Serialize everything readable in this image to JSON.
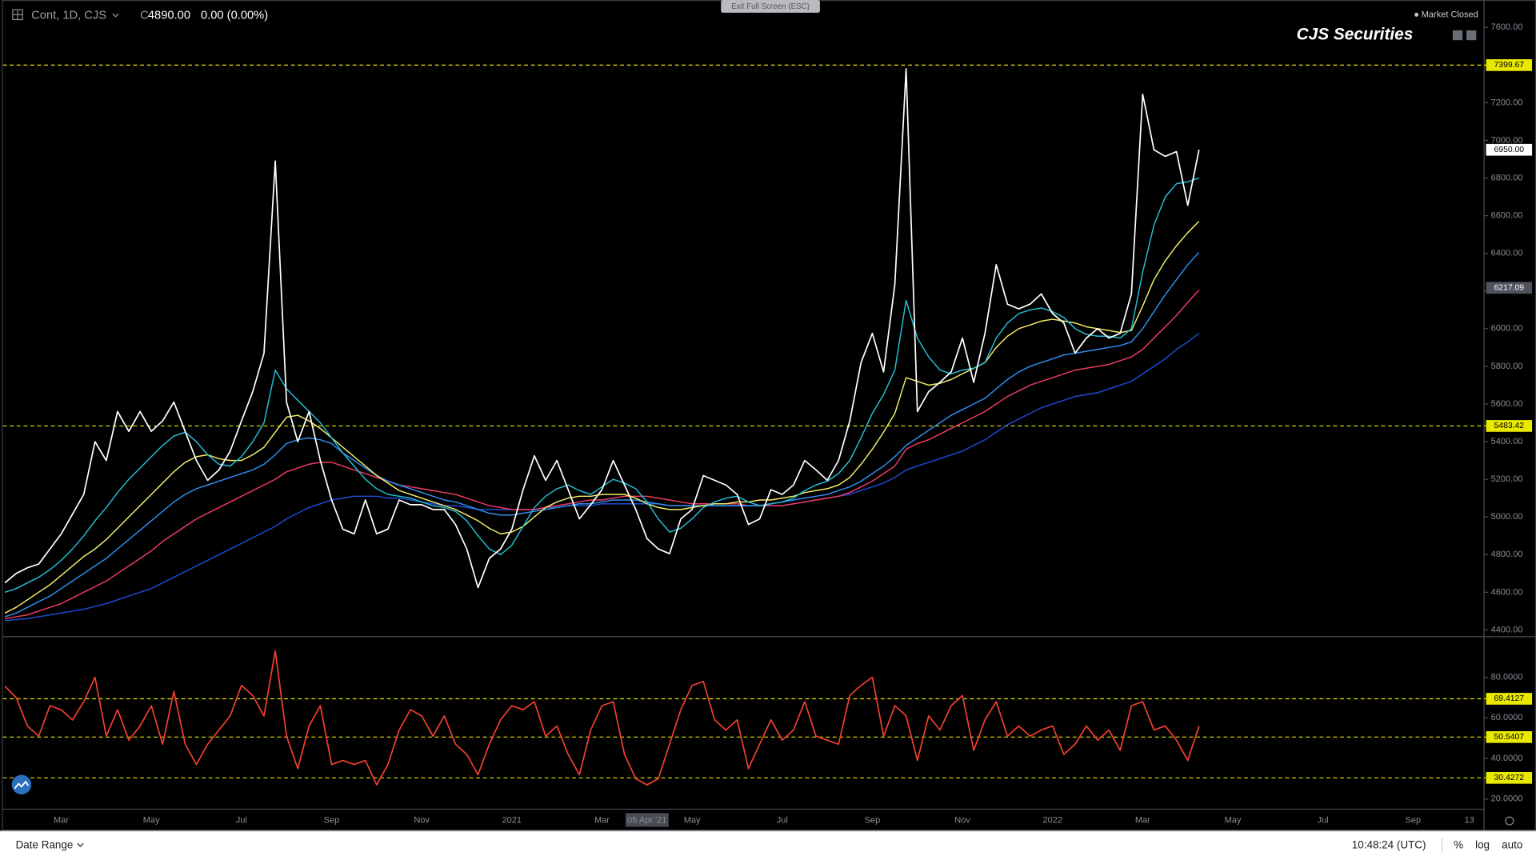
{
  "header": {
    "symbol": "Cont, 1D, CJS",
    "close_label": "C",
    "close": "4890.00",
    "change": "0.00 (0.00%)",
    "exit_button": "Exit Full Screen (ESC)",
    "market_status": "Market Closed",
    "brand": "CJS Securities"
  },
  "footer": {
    "date_range": "Date Range",
    "time": "10:48:24 (UTC)",
    "percent": "%",
    "log": "log",
    "auto": "auto"
  },
  "chart_data": {
    "type": "line",
    "categories": [
      null,
      null,
      null,
      null,
      null,
      "Mar",
      null,
      null,
      null,
      null,
      null,
      null,
      null,
      "May",
      null,
      null,
      null,
      null,
      null,
      null,
      null,
      "Jul",
      null,
      null,
      null,
      null,
      null,
      null,
      null,
      "Sep",
      null,
      null,
      null,
      null,
      null,
      null,
      null,
      "Nov",
      null,
      null,
      null,
      null,
      null,
      null,
      null,
      "2021",
      null,
      null,
      null,
      null,
      null,
      null,
      null,
      "Mar",
      null,
      null,
      null,
      "05 Apr '21",
      null,
      null,
      null,
      "May",
      null,
      null,
      null,
      null,
      null,
      null,
      null,
      "Jul",
      null,
      null,
      null,
      null,
      null,
      null,
      null,
      "Sep",
      null,
      null,
      null,
      null,
      null,
      null,
      null,
      "Nov",
      null,
      null,
      null,
      null,
      null,
      null,
      null,
      "2022",
      null,
      null,
      null,
      null,
      null,
      null,
      null,
      "Mar",
      null,
      null,
      null,
      null,
      null,
      null,
      null,
      "May",
      null,
      null,
      null,
      null,
      null,
      null,
      null,
      "Jul",
      null,
      null,
      null,
      null,
      null,
      null,
      null,
      "Sep",
      null,
      null,
      null,
      null,
      "13",
      null
    ],
    "ylim": [
      4364,
      7735
    ],
    "yticks": [
      {
        "value": 4400,
        "label": "4400.00"
      },
      {
        "value": 4600,
        "label": "4600.00"
      },
      {
        "value": 4800,
        "label": "4800.00"
      },
      {
        "value": 5000,
        "label": "5000.00"
      },
      {
        "value": 5200,
        "label": "5200.00"
      },
      {
        "value": 5400,
        "label": "5400.00"
      },
      {
        "value": 5600,
        "label": "5600.00"
      },
      {
        "value": 5800,
        "label": "5800.00"
      },
      {
        "value": 6000,
        "label": "6000.00"
      },
      {
        "value": 6200,
        "label": "6200.00"
      },
      {
        "value": 6400,
        "label": "6400.00"
      },
      {
        "value": 6600,
        "label": "6600.00"
      },
      {
        "value": 6800,
        "label": "6800.00"
      },
      {
        "value": 7000,
        "label": "7000.00"
      },
      {
        "value": 7200,
        "label": "7200.00"
      },
      {
        "value": 7400,
        "label": "7400.00"
      },
      {
        "value": 7600,
        "label": "7600.00"
      }
    ],
    "grid": false,
    "hlines": [
      7399.67,
      5483.42
    ],
    "hline_color": "#e8e800",
    "price_tags": [
      {
        "value": 6950,
        "label": "6950.00",
        "color": "#ffffff"
      },
      {
        "value": 6217.09,
        "color": "#50535e"
      }
    ],
    "series": [
      {
        "color": "#1e4bd2",
        "values": [
          4450,
          4455,
          4460,
          4470,
          4480,
          4490,
          4500,
          4510,
          4525,
          4540,
          4560,
          4580,
          4600,
          4620,
          4650,
          4680,
          4710,
          4740,
          4770,
          4800,
          4830,
          4860,
          4890,
          4920,
          4950,
          4990,
          5020,
          5050,
          5070,
          5090,
          5100,
          5110,
          5110,
          5110,
          5100,
          5100,
          5090,
          5080,
          5070,
          5060,
          5060,
          5050,
          5040,
          5040,
          5040,
          5040,
          5040,
          5040,
          5050,
          5050,
          5060,
          5060,
          5060,
          5070,
          5070,
          5070,
          5070,
          5070,
          5070,
          5060,
          5060,
          5060,
          5060,
          5060,
          5060,
          5060,
          5060,
          5060,
          5060,
          5060,
          5070,
          5080,
          5090,
          5100,
          5110,
          5120,
          5140,
          5160,
          5180,
          5210,
          5250,
          5270,
          5290,
          5310,
          5330,
          5350,
          5380,
          5410,
          5450,
          5490,
          5520,
          5550,
          5580,
          5600,
          5620,
          5640,
          5650,
          5660,
          5680,
          5700,
          5720,
          5760,
          5800,
          5840,
          5890,
          5930,
          5975,
          null,
          null,
          null,
          null,
          null,
          null,
          null,
          null,
          null,
          null,
          null,
          null,
          null,
          null,
          null,
          null,
          null,
          null,
          null,
          null,
          null,
          null,
          null,
          null,
          null
        ]
      },
      {
        "color": "#ef3b62",
        "values": [
          4460,
          4470,
          4480,
          4500,
          4520,
          4540,
          4570,
          4600,
          4630,
          4660,
          4700,
          4740,
          4780,
          4820,
          4870,
          4910,
          4950,
          4990,
          5020,
          5050,
          5080,
          5110,
          5140,
          5170,
          5200,
          5240,
          5260,
          5280,
          5290,
          5290,
          5270,
          5250,
          5230,
          5210,
          5190,
          5170,
          5160,
          5150,
          5140,
          5130,
          5120,
          5100,
          5080,
          5060,
          5050,
          5040,
          5040,
          5040,
          5050,
          5060,
          5070,
          5080,
          5090,
          5090,
          5100,
          5110,
          5110,
          5110,
          5100,
          5090,
          5080,
          5070,
          5070,
          5070,
          5070,
          5070,
          5060,
          5060,
          5060,
          5060,
          5070,
          5080,
          5090,
          5100,
          5110,
          5130,
          5160,
          5190,
          5230,
          5270,
          5360,
          5390,
          5410,
          5440,
          5470,
          5500,
          5530,
          5560,
          5600,
          5640,
          5670,
          5700,
          5720,
          5740,
          5760,
          5780,
          5790,
          5800,
          5810,
          5830,
          5850,
          5890,
          5950,
          6010,
          6070,
          6140,
          6205,
          null,
          null,
          null,
          null,
          null,
          null,
          null,
          null,
          null,
          null,
          null,
          null,
          null,
          null,
          null,
          null,
          null,
          null,
          null,
          null,
          null,
          null,
          null,
          null,
          null
        ]
      },
      {
        "color": "#2e8ff0",
        "values": [
          4470,
          4490,
          4520,
          4550,
          4580,
          4620,
          4660,
          4700,
          4740,
          4780,
          4830,
          4880,
          4930,
          4980,
          5030,
          5080,
          5120,
          5150,
          5170,
          5190,
          5210,
          5230,
          5250,
          5280,
          5330,
          5390,
          5410,
          5420,
          5410,
          5390,
          5340,
          5300,
          5260,
          5220,
          5190,
          5170,
          5150,
          5130,
          5110,
          5090,
          5080,
          5060,
          5040,
          5020,
          5010,
          5010,
          5020,
          5030,
          5040,
          5050,
          5060,
          5070,
          5070,
          5080,
          5090,
          5090,
          5090,
          5080,
          5070,
          5060,
          5060,
          5060,
          5060,
          5060,
          5060,
          5060,
          5060,
          5060,
          5070,
          5080,
          5090,
          5100,
          5110,
          5120,
          5140,
          5160,
          5190,
          5230,
          5270,
          5320,
          5380,
          5420,
          5460,
          5500,
          5540,
          5570,
          5600,
          5630,
          5680,
          5730,
          5770,
          5800,
          5820,
          5840,
          5860,
          5870,
          5880,
          5890,
          5900,
          5910,
          5930,
          6000,
          6090,
          6180,
          6260,
          6340,
          6405,
          null,
          null,
          null,
          null,
          null,
          null,
          null,
          null,
          null,
          null,
          null,
          null,
          null,
          null,
          null,
          null,
          null,
          null,
          null,
          null,
          null,
          null,
          null,
          null,
          null
        ]
      },
      {
        "color": "#f5ee6a",
        "values": [
          4490,
          4520,
          4560,
          4600,
          4640,
          4690,
          4740,
          4790,
          4830,
          4880,
          4940,
          5000,
          5060,
          5120,
          5180,
          5240,
          5290,
          5320,
          5330,
          5310,
          5300,
          5300,
          5330,
          5370,
          5450,
          5530,
          5540,
          5510,
          5470,
          5420,
          5370,
          5320,
          5270,
          5220,
          5180,
          5140,
          5120,
          5100,
          5080,
          5060,
          5040,
          5010,
          4980,
          4940,
          4910,
          4920,
          4950,
          5000,
          5050,
          5080,
          5100,
          5110,
          5110,
          5120,
          5120,
          5120,
          5100,
          5070,
          5050,
          5040,
          5040,
          5050,
          5060,
          5070,
          5070,
          5080,
          5080,
          5090,
          5090,
          5100,
          5110,
          5130,
          5140,
          5150,
          5170,
          5210,
          5280,
          5360,
          5450,
          5550,
          5740,
          5720,
          5700,
          5710,
          5730,
          5760,
          5790,
          5820,
          5900,
          5960,
          6000,
          6020,
          6040,
          6050,
          6040,
          6030,
          6010,
          6000,
          5990,
          5980,
          5990,
          6120,
          6260,
          6360,
          6440,
          6510,
          6570,
          null,
          null,
          null,
          null,
          null,
          null,
          null,
          null,
          null,
          null,
          null,
          null,
          null,
          null,
          null,
          null,
          null,
          null,
          null,
          null,
          null,
          null,
          null,
          null,
          null
        ]
      },
      {
        "color": "#22bfd6",
        "values": [
          4600,
          4620,
          4650,
          4680,
          4720,
          4770,
          4830,
          4900,
          4980,
          5050,
          5130,
          5200,
          5260,
          5320,
          5380,
          5430,
          5450,
          5400,
          5330,
          5280,
          5270,
          5320,
          5400,
          5500,
          5780,
          5680,
          5620,
          5560,
          5500,
          5420,
          5340,
          5270,
          5200,
          5150,
          5120,
          5110,
          5100,
          5080,
          5060,
          5050,
          5030,
          4980,
          4900,
          4830,
          4800,
          4850,
          4950,
          5050,
          5110,
          5150,
          5170,
          5140,
          5120,
          5160,
          5200,
          5180,
          5150,
          5080,
          4990,
          4920,
          4940,
          4990,
          5050,
          5080,
          5100,
          5110,
          5080,
          5060,
          5070,
          5080,
          5100,
          5140,
          5170,
          5190,
          5230,
          5300,
          5420,
          5550,
          5650,
          5780,
          6150,
          5950,
          5850,
          5780,
          5760,
          5780,
          5790,
          5820,
          5950,
          6030,
          6080,
          6100,
          6110,
          6090,
          6060,
          6000,
          5970,
          5960,
          5960,
          5950,
          6000,
          6300,
          6550,
          6700,
          6770,
          6780,
          6800,
          null,
          null,
          null,
          null,
          null,
          null,
          null,
          null,
          null,
          null,
          null,
          null,
          null,
          null,
          null,
          null,
          null,
          null,
          null,
          null,
          null,
          null,
          null,
          null,
          null
        ]
      },
      {
        "color": "#ffffff",
        "values": [
          4650,
          4700,
          4730,
          4750,
          4830,
          4910,
          5015,
          5120,
          5400,
          5300,
          5560,
          5455,
          5560,
          5455,
          5510,
          5610,
          5455,
          5300,
          5195,
          5250,
          5350,
          5510,
          5665,
          5870,
          6890,
          5610,
          5400,
          5560,
          5300,
          5090,
          4935,
          4910,
          5090,
          4910,
          4935,
          5090,
          5065,
          5065,
          5040,
          5040,
          4960,
          4830,
          4625,
          4780,
          4830,
          4935,
          5145,
          5325,
          5195,
          5300,
          5145,
          4990,
          5065,
          5145,
          5300,
          5170,
          5040,
          4885,
          4830,
          4805,
          4990,
          5040,
          5220,
          5195,
          5170,
          5120,
          4960,
          4990,
          5145,
          5120,
          5170,
          5300,
          5250,
          5195,
          5300,
          5510,
          5820,
          5975,
          5770,
          6235,
          7380,
          5560,
          5665,
          5715,
          5770,
          5950,
          5715,
          5975,
          6340,
          6130,
          6105,
          6130,
          6185,
          6080,
          6030,
          5870,
          5950,
          6000,
          5950,
          5975,
          6185,
          7245,
          6950,
          6915,
          6940,
          6655,
          6950,
          null,
          null,
          null,
          null,
          null,
          null,
          null,
          null,
          null,
          null,
          null,
          null,
          null,
          null,
          null,
          null,
          null,
          null,
          null,
          null,
          null,
          null,
          null,
          null,
          null
        ]
      }
    ],
    "rsi_pane": {
      "type": "line",
      "ylim": [
        15,
        100
      ],
      "yticks": [
        {
          "value": 20,
          "label": "20.0000"
        },
        {
          "value": 40,
          "label": "40.0000"
        },
        {
          "value": 60,
          "label": "60.0000"
        },
        {
          "value": 80,
          "label": "80.0000"
        }
      ],
      "levels": [
        69.4127,
        50.5407,
        30.4272
      ],
      "level_color": "#e8e800",
      "series": [
        {
          "color": "#f0402e",
          "values": [
            75.6,
            70,
            56,
            51,
            66,
            64,
            59,
            68,
            80,
            51,
            64,
            49,
            56,
            66,
            47,
            73,
            47,
            37,
            47,
            54,
            61,
            76,
            71,
            61,
            93,
            51,
            35,
            56,
            66,
            37,
            39,
            37,
            39,
            27,
            37,
            54,
            64,
            61,
            51,
            61,
            47,
            42,
            32,
            47,
            59,
            66,
            64,
            68,
            51,
            56,
            42,
            32,
            54,
            66,
            68,
            42,
            30,
            27,
            30,
            47,
            64,
            76,
            78,
            59,
            54,
            59,
            35,
            47,
            59,
            49,
            54,
            68,
            51,
            49,
            47,
            71,
            76,
            80,
            51,
            66,
            61,
            39,
            61,
            54,
            66,
            71,
            44,
            59,
            68,
            51,
            56,
            51,
            54,
            56,
            42,
            47,
            56,
            49,
            54,
            44,
            66,
            68,
            54,
            56,
            49,
            39,
            56,
            null,
            null,
            null,
            null,
            null,
            null,
            null,
            null,
            null,
            null,
            null,
            null,
            null,
            null,
            null,
            null,
            null,
            null,
            null,
            null,
            null,
            null,
            null,
            null,
            null
          ]
        }
      ]
    }
  }
}
